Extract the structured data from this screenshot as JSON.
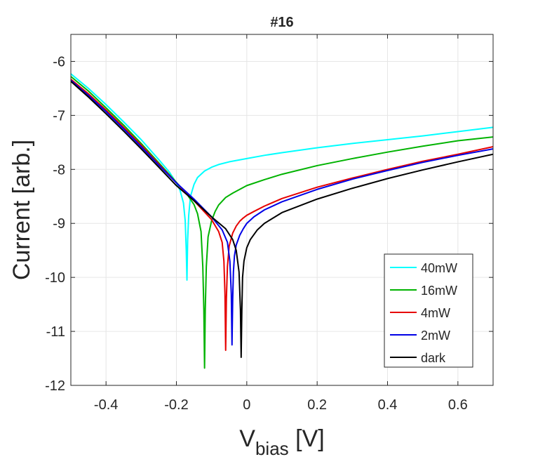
{
  "chart_data": {
    "type": "line",
    "title": "#16",
    "xlabel": {
      "main": "V",
      "sub": "bias",
      "unit": " [V]"
    },
    "ylabel": "Current [arb.]",
    "xlim": [
      -0.5,
      0.7
    ],
    "ylim": [
      -12,
      -5.5
    ],
    "xticks": [
      -0.4,
      -0.2,
      0,
      0.2,
      0.4,
      0.6
    ],
    "xtick_labels": [
      "-0.4",
      "-0.2",
      "0",
      "0.2",
      "0.4",
      "0.6"
    ],
    "yticks": [
      -12,
      -11,
      -10,
      -9,
      -8,
      -7,
      -6
    ],
    "ytick_labels": [
      "-12",
      "-11",
      "-10",
      "-9",
      "-8",
      "-7",
      "-6"
    ],
    "grid": true,
    "legend_position": "bottom-right",
    "series": [
      {
        "name": "40mW",
        "color": "#00ffff",
        "x": [
          -0.5,
          -0.45,
          -0.4,
          -0.35,
          -0.3,
          -0.25,
          -0.22,
          -0.2,
          -0.19,
          -0.18,
          -0.175,
          -0.172,
          -0.17,
          -0.168,
          -0.165,
          -0.16,
          -0.15,
          -0.14,
          -0.12,
          -0.1,
          -0.08,
          -0.05,
          0,
          0.05,
          0.1,
          0.2,
          0.3,
          0.4,
          0.5,
          0.6,
          0.7
        ],
        "y": [
          -6.23,
          -6.5,
          -6.8,
          -7.12,
          -7.45,
          -7.82,
          -8.05,
          -8.25,
          -8.38,
          -8.62,
          -8.95,
          -9.5,
          -10.05,
          -9.3,
          -8.85,
          -8.5,
          -8.28,
          -8.15,
          -8.03,
          -7.96,
          -7.91,
          -7.86,
          -7.8,
          -7.74,
          -7.69,
          -7.6,
          -7.52,
          -7.45,
          -7.38,
          -7.3,
          -7.22
        ]
      },
      {
        "name": "16mW",
        "color": "#00b300",
        "x": [
          -0.5,
          -0.45,
          -0.4,
          -0.35,
          -0.3,
          -0.25,
          -0.2,
          -0.17,
          -0.15,
          -0.14,
          -0.13,
          -0.125,
          -0.122,
          -0.12,
          -0.118,
          -0.115,
          -0.11,
          -0.1,
          -0.09,
          -0.08,
          -0.06,
          -0.04,
          -0.02,
          0,
          0.05,
          0.1,
          0.2,
          0.3,
          0.4,
          0.5,
          0.6,
          0.7
        ],
        "y": [
          -6.28,
          -6.55,
          -6.86,
          -7.18,
          -7.52,
          -7.88,
          -8.24,
          -8.46,
          -8.65,
          -8.82,
          -9.15,
          -9.8,
          -10.6,
          -11.68,
          -10.6,
          -9.8,
          -9.25,
          -8.95,
          -8.78,
          -8.66,
          -8.52,
          -8.44,
          -8.37,
          -8.3,
          -8.19,
          -8.09,
          -7.93,
          -7.8,
          -7.68,
          -7.57,
          -7.47,
          -7.4
        ]
      },
      {
        "name": "4mW",
        "color": "#e60000",
        "x": [
          -0.5,
          -0.45,
          -0.4,
          -0.35,
          -0.3,
          -0.25,
          -0.2,
          -0.15,
          -0.1,
          -0.08,
          -0.07,
          -0.065,
          -0.062,
          -0.06,
          -0.058,
          -0.055,
          -0.05,
          -0.04,
          -0.03,
          -0.02,
          -0.01,
          0,
          0.02,
          0.05,
          0.1,
          0.2,
          0.3,
          0.4,
          0.5,
          0.6,
          0.7
        ],
        "y": [
          -6.33,
          -6.6,
          -6.9,
          -7.22,
          -7.55,
          -7.9,
          -8.25,
          -8.58,
          -8.93,
          -9.15,
          -9.35,
          -9.7,
          -10.3,
          -11.35,
          -10.4,
          -9.8,
          -9.42,
          -9.18,
          -9.05,
          -8.96,
          -8.9,
          -8.85,
          -8.78,
          -8.68,
          -8.54,
          -8.33,
          -8.16,
          -8.0,
          -7.85,
          -7.72,
          -7.58
        ]
      },
      {
        "name": "2mW",
        "color": "#0000e6",
        "x": [
          -0.5,
          -0.45,
          -0.4,
          -0.35,
          -0.3,
          -0.25,
          -0.2,
          -0.15,
          -0.1,
          -0.07,
          -0.055,
          -0.048,
          -0.044,
          -0.042,
          -0.04,
          -0.038,
          -0.035,
          -0.03,
          -0.02,
          -0.01,
          0,
          0.02,
          0.05,
          0.1,
          0.2,
          0.3,
          0.4,
          0.5,
          0.6,
          0.7
        ],
        "y": [
          -6.35,
          -6.63,
          -6.93,
          -7.25,
          -7.58,
          -7.92,
          -8.25,
          -8.55,
          -8.88,
          -9.12,
          -9.35,
          -9.7,
          -10.3,
          -11.25,
          -10.4,
          -9.9,
          -9.6,
          -9.4,
          -9.22,
          -9.1,
          -9.0,
          -8.88,
          -8.75,
          -8.6,
          -8.37,
          -8.18,
          -8.02,
          -7.87,
          -7.74,
          -7.62
        ]
      },
      {
        "name": "dark",
        "color": "#000000",
        "x": [
          -0.5,
          -0.45,
          -0.4,
          -0.35,
          -0.3,
          -0.25,
          -0.2,
          -0.15,
          -0.1,
          -0.06,
          -0.04,
          -0.03,
          -0.022,
          -0.018,
          -0.016,
          -0.014,
          -0.012,
          -0.008,
          0,
          0.01,
          0.03,
          0.05,
          0.1,
          0.2,
          0.3,
          0.4,
          0.5,
          0.6,
          0.7
        ],
        "y": [
          -6.37,
          -6.66,
          -6.97,
          -7.29,
          -7.62,
          -7.96,
          -8.3,
          -8.58,
          -8.88,
          -9.1,
          -9.3,
          -9.5,
          -9.9,
          -10.6,
          -11.48,
          -10.6,
          -10.0,
          -9.7,
          -9.45,
          -9.3,
          -9.12,
          -9.0,
          -8.8,
          -8.55,
          -8.35,
          -8.17,
          -8.01,
          -7.86,
          -7.72
        ]
      }
    ]
  }
}
